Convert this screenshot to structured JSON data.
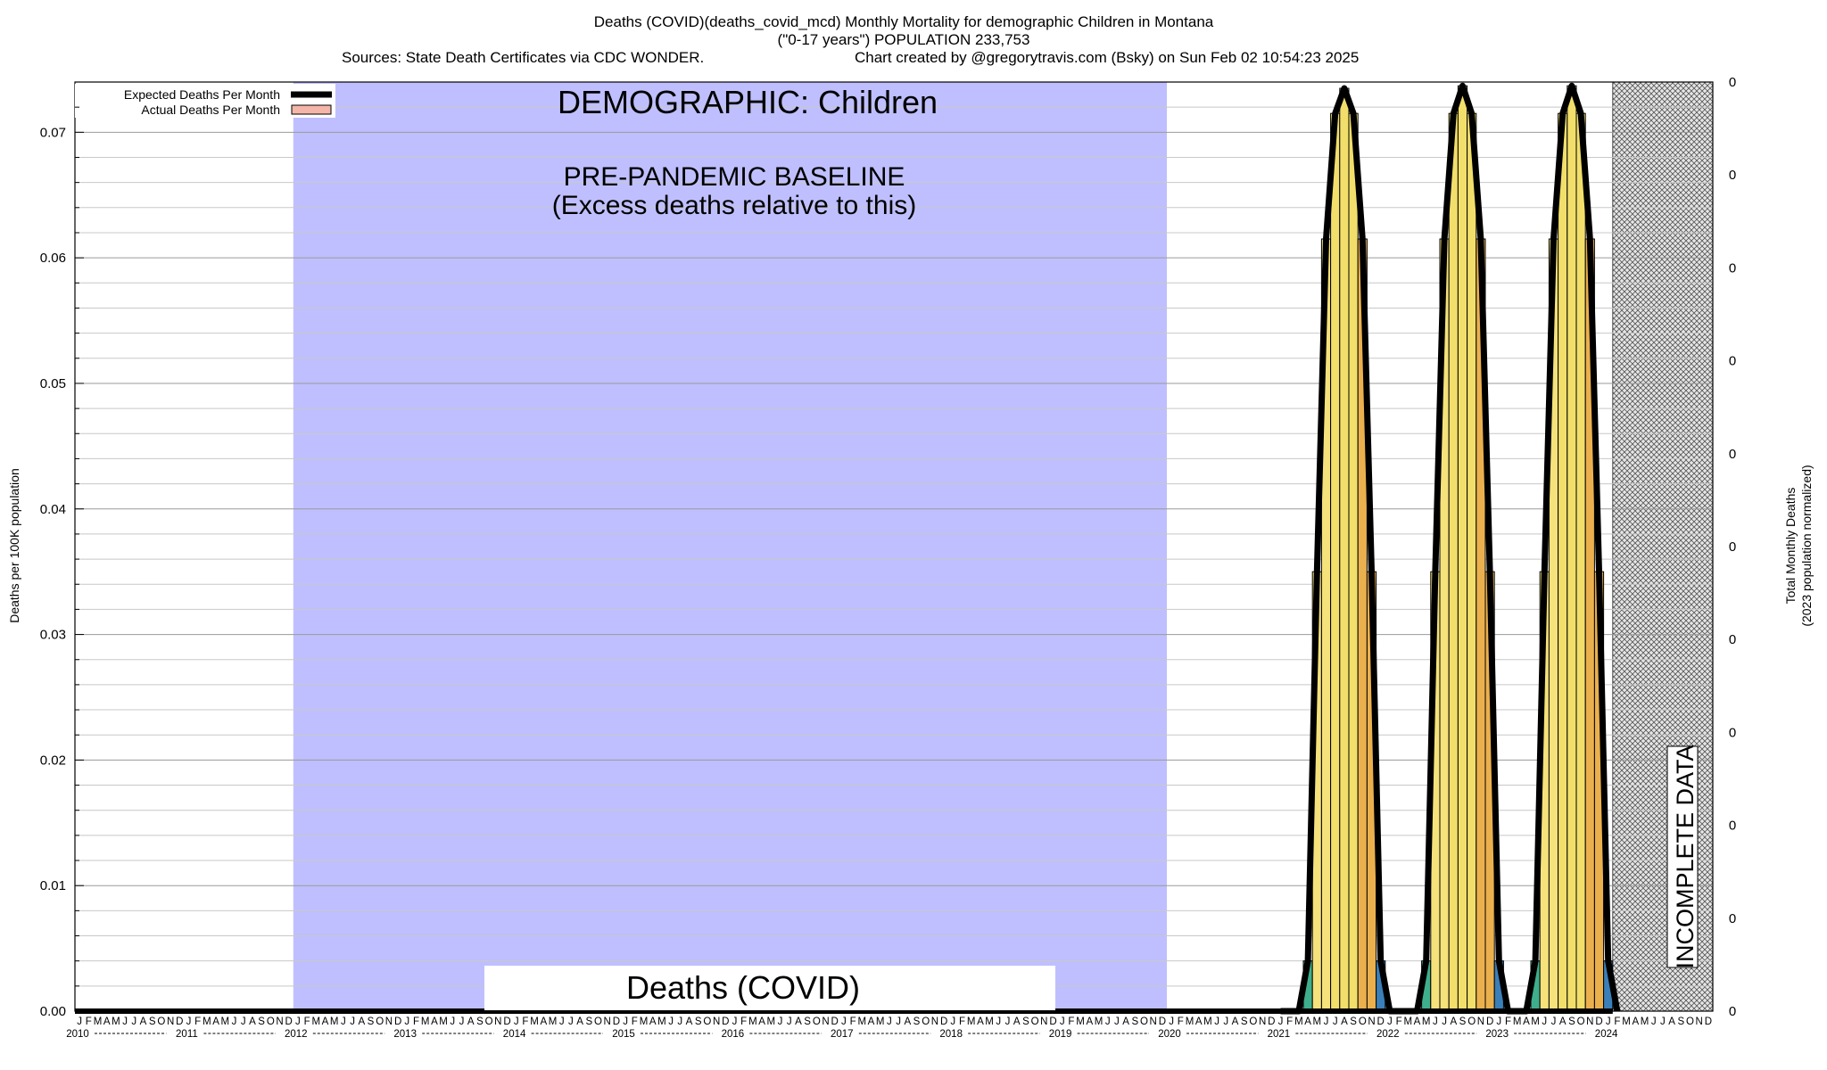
{
  "header": {
    "title_line1": "Deaths (COVID)(deaths_covid_mcd) Monthly Mortality for demographic Children in Montana",
    "title_line2": "(\"0-17 years\") POPULATION 233,753",
    "sources": "Sources: State Death Certificates via CDC WONDER.",
    "credit": "Chart created by @gregorytravis.com (Bsky) on Sun Feb 02 10:54:23 2025"
  },
  "legend": {
    "expected_label": "Expected Deaths Per Month",
    "actual_label": "Actual Deaths Per Month"
  },
  "annotations": {
    "demographic": "DEMOGRAPHIC: Children",
    "baseline_line1": "PRE-PANDEMIC BASELINE",
    "baseline_line2": "(Excess deaths relative to this)",
    "metric_box": "Deaths (COVID)",
    "incomplete": "INCOMPLETE DATA"
  },
  "colors": {
    "baseline_region": "#bfbfff",
    "expected_line": "#000000",
    "actual_legend_swatch": "#f4b6a8",
    "hatch_region": "#d0d0d0"
  },
  "chart_data": {
    "type": "bar",
    "ylabel": "Deaths per 100K population",
    "y2label_line1": "Total Monthly Deaths",
    "y2label_line2": "(2023 population normalized)",
    "ylim": [
      0,
      0.074
    ],
    "y_ticks": [
      "0.00",
      "0.01",
      "0.02",
      "0.03",
      "0.04",
      "0.05",
      "0.06",
      "0.07"
    ],
    "y2_ticks": [
      "0",
      "0",
      "0",
      "0",
      "0",
      "0",
      "0",
      "0",
      "0",
      "0",
      "0"
    ],
    "month_letters": [
      "J",
      "F",
      "M",
      "A",
      "M",
      "J",
      "J",
      "A",
      "S",
      "O",
      "N",
      "D"
    ],
    "years": [
      "2010",
      "2011",
      "2012",
      "2013",
      "2014",
      "2015",
      "2016",
      "2017",
      "2018",
      "2019",
      "2020",
      "2021",
      "2022",
      "2023",
      "2024"
    ],
    "start": "2010-01",
    "baseline_period": [
      "2012-01",
      "2019-12"
    ],
    "incomplete_period": [
      "2024-02",
      "2024-12"
    ],
    "expected_deaths_per_month": 0,
    "actual_deaths_nonzero": [
      {
        "month": "2021-04",
        "value": 0.004
      },
      {
        "month": "2021-05",
        "value": 0.035
      },
      {
        "month": "2021-06",
        "value": 0.0615
      },
      {
        "month": "2021-07",
        "value": 0.0715
      },
      {
        "month": "2021-08",
        "value": 0.0735
      },
      {
        "month": "2021-09",
        "value": 0.0715
      },
      {
        "month": "2021-10",
        "value": 0.0615
      },
      {
        "month": "2021-11",
        "value": 0.035
      },
      {
        "month": "2021-12",
        "value": 0.004
      },
      {
        "month": "2022-05",
        "value": 0.004
      },
      {
        "month": "2022-06",
        "value": 0.035
      },
      {
        "month": "2022-07",
        "value": 0.0615
      },
      {
        "month": "2022-08",
        "value": 0.0715
      },
      {
        "month": "2022-09",
        "value": 0.0737
      },
      {
        "month": "2022-10",
        "value": 0.0715
      },
      {
        "month": "2022-11",
        "value": 0.0615
      },
      {
        "month": "2022-12",
        "value": 0.035
      },
      {
        "month": "2023-01",
        "value": 0.004
      },
      {
        "month": "2023-05",
        "value": 0.004
      },
      {
        "month": "2023-06",
        "value": 0.035
      },
      {
        "month": "2023-07",
        "value": 0.0615
      },
      {
        "month": "2023-08",
        "value": 0.0715
      },
      {
        "month": "2023-09",
        "value": 0.0737
      },
      {
        "month": "2023-10",
        "value": 0.0715
      },
      {
        "month": "2023-11",
        "value": 0.0615
      },
      {
        "month": "2023-12",
        "value": 0.035
      },
      {
        "month": "2024-01",
        "value": 0.004
      }
    ]
  }
}
